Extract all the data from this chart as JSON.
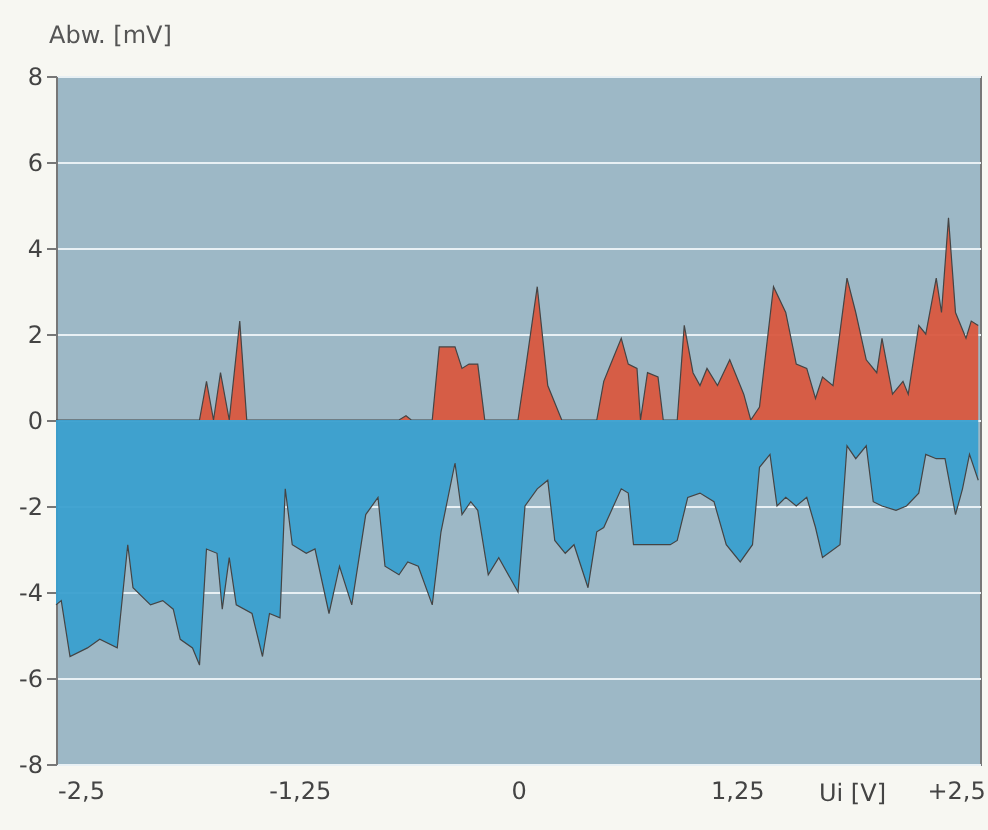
{
  "chart_data": {
    "type": "area",
    "ylabel": "Abw. [mV]",
    "xlabel": "Ui [V]",
    "xlim": [
      -2.64,
      2.64
    ],
    "ylim": [
      -8,
      8
    ],
    "xticks": [
      {
        "value": -2.5,
        "label": "-2,5"
      },
      {
        "value": -1.25,
        "label": "-1,25"
      },
      {
        "value": 0,
        "label": "0"
      },
      {
        "value": 1.25,
        "label": "1,25"
      },
      {
        "value": 2.5,
        "label": "+2,5"
      }
    ],
    "yticks": [
      -8,
      -6,
      -4,
      -2,
      0,
      2,
      4,
      6,
      8
    ],
    "grid": "y",
    "series": [
      {
        "color": "#d9573f",
        "x": [
          -2.64,
          -1.82,
          -1.78,
          -1.74,
          -1.7,
          -1.65,
          -1.59,
          -1.55,
          -0.68,
          -0.64,
          -0.61,
          -0.49,
          -0.45,
          -0.36,
          -0.32,
          -0.28,
          -0.23,
          -0.19,
          0.0,
          0.04,
          0.11,
          0.17,
          0.25,
          0.45,
          0.49,
          0.53,
          0.59,
          0.63,
          0.68,
          0.7,
          0.74,
          0.8,
          0.83,
          0.91,
          0.95,
          1.0,
          1.04,
          1.08,
          1.14,
          1.21,
          1.29,
          1.33,
          1.38,
          1.46,
          1.53,
          1.59,
          1.65,
          1.7,
          1.74,
          1.8,
          1.88,
          1.93,
          1.99,
          2.05,
          2.08,
          2.14,
          2.2,
          2.23,
          2.29,
          2.33,
          2.39,
          2.42,
          2.46,
          2.5,
          2.56,
          2.59,
          2.63
        ],
        "values": [
          0,
          0,
          0.9,
          0,
          1.1,
          0,
          2.3,
          0,
          0,
          0.1,
          0,
          0,
          1.7,
          1.7,
          1.2,
          1.3,
          1.3,
          0,
          0,
          1.1,
          3.1,
          0.8,
          0,
          0,
          0.9,
          1.3,
          1.9,
          1.3,
          1.2,
          0,
          1.1,
          1.0,
          0,
          0,
          2.2,
          1.1,
          0.8,
          1.2,
          0.8,
          1.4,
          0.6,
          0,
          0.3,
          3.1,
          2.5,
          1.3,
          1.2,
          0.5,
          1.0,
          0.8,
          3.3,
          2.5,
          1.4,
          1.1,
          1.9,
          0.6,
          0.9,
          0.6,
          2.2,
          2.0,
          3.3,
          2.5,
          4.7,
          2.5,
          1.9,
          2.3,
          2.2
        ]
      },
      {
        "color": "#3a9fcf",
        "x": [
          -2.64,
          -2.61,
          -2.56,
          -2.46,
          -2.39,
          -2.29,
          -2.23,
          -2.2,
          -2.1,
          -2.03,
          -1.97,
          -1.93,
          -1.86,
          -1.82,
          -1.78,
          -1.72,
          -1.69,
          -1.65,
          -1.61,
          -1.52,
          -1.46,
          -1.42,
          -1.36,
          -1.33,
          -1.29,
          -1.21,
          -1.16,
          -1.08,
          -1.02,
          -0.95,
          -0.87,
          -0.8,
          -0.76,
          -0.68,
          -0.63,
          -0.57,
          -0.49,
          -0.44,
          -0.36,
          -0.32,
          -0.27,
          -0.23,
          -0.17,
          -0.11,
          0.0,
          0.04,
          0.11,
          0.17,
          0.21,
          0.27,
          0.32,
          0.4,
          0.45,
          0.49,
          0.59,
          0.63,
          0.66,
          0.74,
          0.87,
          0.91,
          0.97,
          1.04,
          1.12,
          1.19,
          1.27,
          1.34,
          1.38,
          1.44,
          1.48,
          1.53,
          1.59,
          1.65,
          1.7,
          1.74,
          1.84,
          1.88,
          1.93,
          1.99,
          2.03,
          2.08,
          2.16,
          2.22,
          2.29,
          2.33,
          2.39,
          2.44,
          2.5,
          2.54,
          2.58,
          2.63
        ],
        "values": [
          -4.3,
          -4.2,
          -5.5,
          -5.3,
          -5.1,
          -5.3,
          -2.9,
          -3.9,
          -4.3,
          -4.2,
          -4.4,
          -5.1,
          -5.3,
          -5.7,
          -3.0,
          -3.1,
          -4.4,
          -3.2,
          -4.3,
          -4.5,
          -5.5,
          -4.5,
          -4.6,
          -1.6,
          -2.9,
          -3.1,
          -3.0,
          -4.5,
          -3.4,
          -4.3,
          -2.2,
          -1.8,
          -3.4,
          -3.6,
          -3.3,
          -3.4,
          -4.3,
          -2.6,
          -1.0,
          -2.2,
          -1.9,
          -2.1,
          -3.6,
          -3.2,
          -4.0,
          -2.0,
          -1.6,
          -1.4,
          -2.8,
          -3.1,
          -2.9,
          -3.9,
          -2.6,
          -2.5,
          -1.6,
          -1.7,
          -2.9,
          -2.9,
          -2.9,
          -2.8,
          -1.8,
          -1.7,
          -1.9,
          -2.9,
          -3.3,
          -2.9,
          -1.1,
          -0.8,
          -2.0,
          -1.8,
          -2.0,
          -1.8,
          -2.5,
          -3.2,
          -2.9,
          -0.6,
          -0.9,
          -0.6,
          -1.9,
          -2.0,
          -2.1,
          -2.0,
          -1.7,
          -0.8,
          -0.9,
          -0.9,
          -2.2,
          -1.6,
          -0.8,
          -1.4
        ]
      }
    ]
  }
}
